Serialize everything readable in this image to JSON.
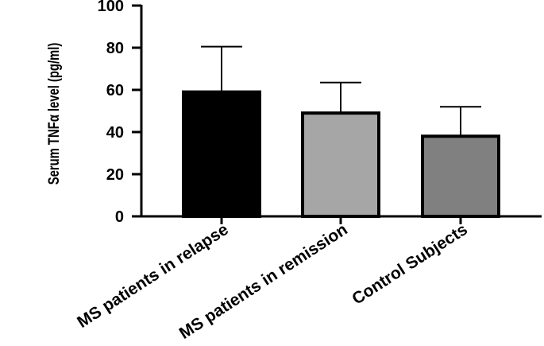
{
  "chart_data": {
    "type": "bar",
    "title": "",
    "xlabel": "",
    "ylabel": "Serum TNFα level (pg/ml)",
    "ylim": [
      0,
      100
    ],
    "yticks": [
      0,
      20,
      40,
      60,
      80,
      100
    ],
    "grid": false,
    "categories": [
      "MS patients in relapse",
      "MS patients in remission",
      "Control Subjects"
    ],
    "values": [
      59,
      49,
      38
    ],
    "error_upper": [
      80.5,
      63.5,
      52
    ],
    "colors": [
      "#000000",
      "#a6a6a6",
      "#808080"
    ]
  }
}
